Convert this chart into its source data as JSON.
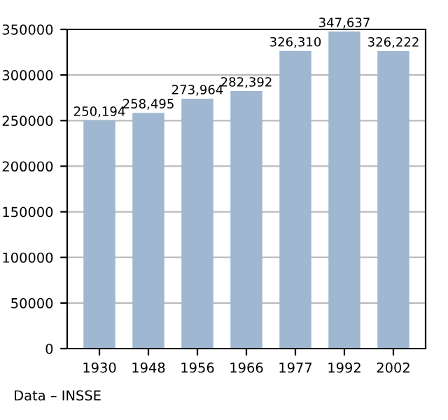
{
  "chart_data": {
    "type": "bar",
    "categories": [
      "1930",
      "1948",
      "1956",
      "1966",
      "1977",
      "1992",
      "2002"
    ],
    "values": [
      250194,
      258495,
      273964,
      282392,
      326310,
      347637,
      326222
    ],
    "value_labels": [
      "250,194",
      "258,495",
      "273,964",
      "282,392",
      "326,310",
      "347,637",
      "326,222"
    ],
    "color": "#9fb7d1",
    "ylim": [
      0,
      350000
    ],
    "yticks": [
      0,
      50000,
      100000,
      150000,
      200000,
      250000,
      300000,
      350000
    ],
    "grid": "y",
    "annotations": [
      "Data – INSSE"
    ]
  }
}
